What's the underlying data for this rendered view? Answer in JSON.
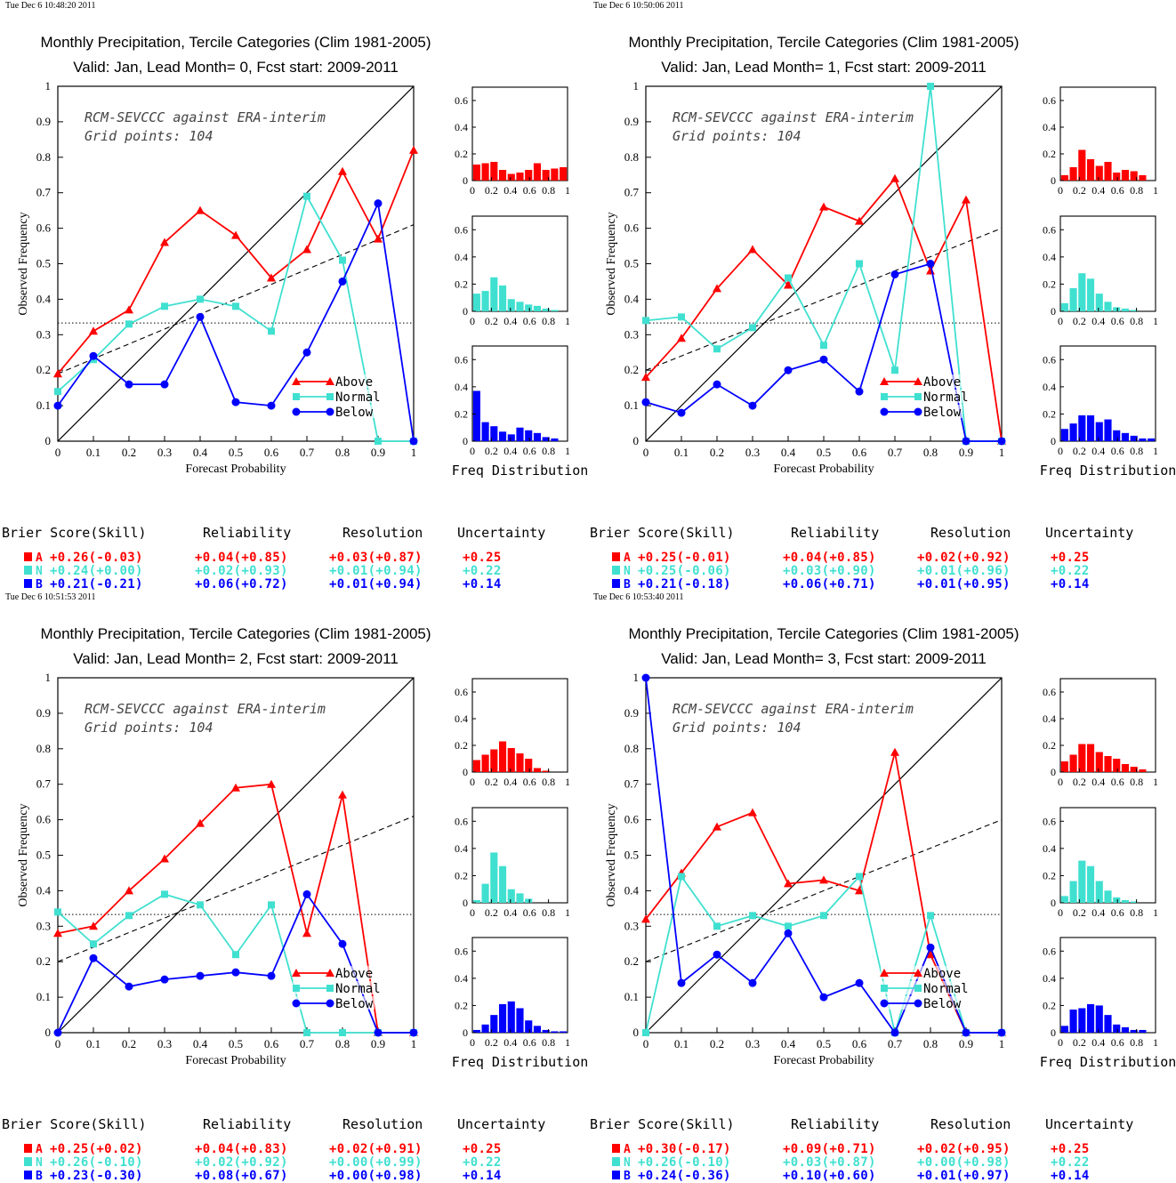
{
  "colors": {
    "above": "#ff0000",
    "normal": "#40e0d0",
    "below": "#0000ff",
    "axis": "#000000"
  },
  "score_headers": [
    "Brier Score(Skill)",
    "Reliability",
    "Resolution",
    "Uncertainty"
  ],
  "category_letters": [
    "A",
    "N",
    "B"
  ],
  "axis_text": {
    "xlabel": "Forecast Probability",
    "ylabel": "Observed Frequency",
    "freq_label": "Freq Distribution"
  },
  "x_ticks": [
    "0",
    "0.1",
    "0.2",
    "0.3",
    "0.4",
    "0.5",
    "0.6",
    "0.7",
    "0.8",
    "0.9",
    "1"
  ],
  "y_ticks": [
    "0",
    "0.1",
    "0.2",
    "0.3",
    "0.4",
    "0.5",
    "0.6",
    "0.7",
    "0.8",
    "0.9",
    "1"
  ],
  "hist_x_ticks": [
    "0",
    "0.2",
    "0.4",
    "0.6",
    "0.8",
    "1"
  ],
  "hist_y_ticks": [
    "0",
    "0.2",
    "0.4",
    "0.6"
  ],
  "legend": [
    "Above",
    "Normal",
    "Below"
  ],
  "chart_data": [
    {
      "type": "line",
      "timestamp": "Tue Dec  6 10:48:20 2011",
      "title": "Monthly Precipitation, Tercile Categories (Clim 1981-2005)",
      "subtitle": "Valid: Jan, Lead Month= 0, Fcst start: 2009-2011",
      "annotation": [
        "RCM-SEVCCC against ERA-interim",
        "Grid points:  104"
      ],
      "xlim": [
        0,
        1
      ],
      "ylim": [
        0,
        1
      ],
      "climatology": 0.333,
      "regression": [
        [
          0,
          0.19
        ],
        [
          1,
          0.61
        ]
      ],
      "x": [
        0,
        0.1,
        0.2,
        0.3,
        0.4,
        0.5,
        0.6,
        0.7,
        0.8,
        0.9,
        1
      ],
      "series": [
        {
          "name": "Above",
          "values": [
            0.19,
            0.31,
            0.37,
            0.56,
            0.65,
            0.58,
            0.46,
            0.54,
            0.76,
            0.57,
            0.82
          ]
        },
        {
          "name": "Normal",
          "values": [
            0.14,
            0.23,
            0.33,
            0.38,
            0.4,
            0.38,
            0.31,
            0.69,
            0.51,
            0,
            0
          ]
        },
        {
          "name": "Below",
          "values": [
            0.1,
            0.24,
            0.16,
            0.16,
            0.35,
            0.11,
            0.1,
            0.25,
            0.45,
            0.67,
            0
          ]
        }
      ],
      "hist": [
        [
          0.12,
          0.13,
          0.14,
          0.08,
          0.05,
          0.06,
          0.08,
          0.13,
          0.08,
          0.09,
          0.1
        ],
        [
          0.13,
          0.15,
          0.25,
          0.19,
          0.09,
          0.07,
          0.05,
          0.04,
          0.02,
          0.01,
          0
        ],
        [
          0.37,
          0.14,
          0.11,
          0.07,
          0.05,
          0.1,
          0.08,
          0.06,
          0.03,
          0.02,
          0
        ]
      ],
      "scores": [
        [
          "+0.26(-0.03)",
          "+0.04(+0.85)",
          "+0.03(+0.87)",
          "+0.25"
        ],
        [
          "+0.24(+0.00)",
          "+0.02(+0.93)",
          "+0.01(+0.94)",
          "+0.22"
        ],
        [
          "+0.21(-0.21)",
          "+0.06(+0.72)",
          "+0.01(+0.94)",
          "+0.14"
        ]
      ]
    },
    {
      "type": "line",
      "timestamp": "Tue Dec  6 10:50:06 2011",
      "title": "Monthly Precipitation, Tercile Categories (Clim 1981-2005)",
      "subtitle": "Valid: Jan, Lead Month= 1, Fcst start: 2009-2011",
      "annotation": [
        "RCM-SEVCCC against ERA-interim",
        "Grid points:  104"
      ],
      "xlim": [
        0,
        1
      ],
      "ylim": [
        0,
        1
      ],
      "climatology": 0.333,
      "regression": [
        [
          0,
          0.2
        ],
        [
          1,
          0.6
        ]
      ],
      "x": [
        0,
        0.1,
        0.2,
        0.3,
        0.4,
        0.5,
        0.6,
        0.7,
        0.8,
        0.9,
        1
      ],
      "series": [
        {
          "name": "Above",
          "values": [
            0.18,
            0.29,
            0.43,
            0.54,
            0.44,
            0.66,
            0.62,
            0.74,
            0.48,
            0.68,
            0
          ]
        },
        {
          "name": "Normal",
          "values": [
            0.34,
            0.35,
            0.26,
            0.32,
            0.46,
            0.27,
            0.5,
            0.2,
            1.0,
            0,
            0
          ]
        },
        {
          "name": "Below",
          "values": [
            0.11,
            0.08,
            0.16,
            0.1,
            0.2,
            0.23,
            0.14,
            0.47,
            0.5,
            0,
            0
          ]
        }
      ],
      "hist": [
        [
          0.04,
          0.1,
          0.23,
          0.16,
          0.11,
          0.14,
          0.06,
          0.08,
          0.07,
          0.04,
          0
        ],
        [
          0.06,
          0.17,
          0.28,
          0.24,
          0.13,
          0.07,
          0.03,
          0.02,
          0.01,
          0,
          0
        ],
        [
          0.09,
          0.13,
          0.19,
          0.19,
          0.14,
          0.16,
          0.08,
          0.06,
          0.04,
          0.02,
          0.02
        ]
      ],
      "scores": [
        [
          "+0.25(-0.01)",
          "+0.04(+0.85)",
          "+0.02(+0.92)",
          "+0.25"
        ],
        [
          "+0.25(-0.06)",
          "+0.03(+0.90)",
          "+0.01(+0.96)",
          "+0.22"
        ],
        [
          "+0.21(-0.18)",
          "+0.06(+0.71)",
          "+0.01(+0.95)",
          "+0.14"
        ]
      ]
    },
    {
      "type": "line",
      "timestamp": "Tue Dec  6 10:51:53 2011",
      "title": "Monthly Precipitation, Tercile Categories (Clim 1981-2005)",
      "subtitle": "Valid: Jan, Lead Month= 2, Fcst start: 2009-2011",
      "annotation": [
        "RCM-SEVCCC against ERA-interim",
        "Grid points:  104"
      ],
      "xlim": [
        0,
        1
      ],
      "ylim": [
        0,
        1
      ],
      "climatology": 0.333,
      "regression": [
        [
          0,
          0.2
        ],
        [
          1,
          0.61
        ]
      ],
      "x": [
        0,
        0.1,
        0.2,
        0.3,
        0.4,
        0.5,
        0.6,
        0.7,
        0.8,
        0.9,
        1
      ],
      "series": [
        {
          "name": "Above",
          "values": [
            0.28,
            0.3,
            0.4,
            0.49,
            0.59,
            0.69,
            0.7,
            0.28,
            0.67,
            0,
            0
          ]
        },
        {
          "name": "Normal",
          "values": [
            0.34,
            0.25,
            0.33,
            0.39,
            0.36,
            0.22,
            0.36,
            0,
            0,
            0,
            0
          ]
        },
        {
          "name": "Below",
          "values": [
            0,
            0.21,
            0.13,
            0.15,
            0.16,
            0.17,
            0.16,
            0.39,
            0.25,
            0,
            0
          ]
        }
      ],
      "hist": [
        [
          0.09,
          0.13,
          0.17,
          0.23,
          0.18,
          0.14,
          0.1,
          0.03,
          0.01,
          0,
          0
        ],
        [
          0.02,
          0.14,
          0.37,
          0.27,
          0.1,
          0.07,
          0.03,
          0,
          0,
          0,
          0
        ],
        [
          0.02,
          0.06,
          0.13,
          0.21,
          0.23,
          0.18,
          0.09,
          0.05,
          0.02,
          0.01,
          0.01
        ]
      ],
      "scores": [
        [
          "+0.25(+0.02)",
          "+0.04(+0.83)",
          "+0.02(+0.91)",
          "+0.25"
        ],
        [
          "+0.26(-0.10)",
          "+0.02(+0.92)",
          "+0.00(+0.99)",
          "+0.22"
        ],
        [
          "+0.23(-0.30)",
          "+0.08(+0.67)",
          "+0.00(+0.98)",
          "+0.14"
        ]
      ]
    },
    {
      "type": "line",
      "timestamp": "Tue Dec  6 10:53:40 2011",
      "title": "Monthly Precipitation, Tercile Categories (Clim 1981-2005)",
      "subtitle": "Valid: Jan, Lead Month= 3, Fcst start: 2009-2011",
      "annotation": [
        "RCM-SEVCCC against ERA-interim",
        "Grid points:  104"
      ],
      "xlim": [
        0,
        1
      ],
      "ylim": [
        0,
        1
      ],
      "climatology": 0.333,
      "regression": [
        [
          0,
          0.2
        ],
        [
          1,
          0.6
        ]
      ],
      "x": [
        0,
        0.1,
        0.2,
        0.3,
        0.4,
        0.5,
        0.6,
        0.7,
        0.8,
        0.9,
        1
      ],
      "series": [
        {
          "name": "Above",
          "values": [
            0.32,
            0.45,
            0.58,
            0.62,
            0.42,
            0.43,
            0.4,
            0.79,
            0.22,
            0,
            0
          ]
        },
        {
          "name": "Normal",
          "values": [
            0,
            0.44,
            0.3,
            0.33,
            0.3,
            0.33,
            0.44,
            0,
            0.33,
            0,
            0
          ]
        },
        {
          "name": "Below",
          "values": [
            1.0,
            0.14,
            0.22,
            0.14,
            0.28,
            0.1,
            0.14,
            0,
            0.24,
            0,
            0
          ]
        }
      ],
      "hist": [
        [
          0.08,
          0.13,
          0.21,
          0.21,
          0.15,
          0.12,
          0.1,
          0.06,
          0.04,
          0.02,
          0
        ],
        [
          0.05,
          0.16,
          0.31,
          0.27,
          0.16,
          0.09,
          0.04,
          0.02,
          0.01,
          0,
          0
        ],
        [
          0.05,
          0.17,
          0.18,
          0.21,
          0.2,
          0.13,
          0.06,
          0.04,
          0.02,
          0.02,
          0
        ]
      ],
      "scores": [
        [
          "+0.30(-0.17)",
          "+0.09(+0.71)",
          "+0.02(+0.95)",
          "+0.25"
        ],
        [
          "+0.26(-0.10)",
          "+0.03(+0.87)",
          "+0.00(+0.98)",
          "+0.22"
        ],
        [
          "+0.24(-0.36)",
          "+0.10(+0.60)",
          "+0.01(+0.97)",
          "+0.14"
        ]
      ]
    }
  ]
}
